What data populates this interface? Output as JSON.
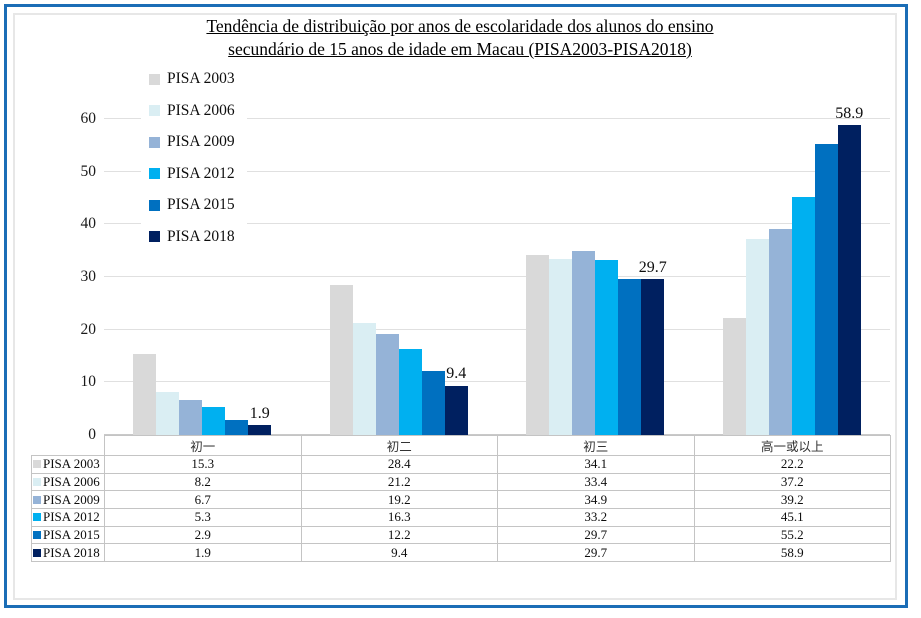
{
  "title": {
    "line1": "Tendência de distribuição por anos de escolaridade dos alunos do ensino",
    "line2": "secundário de 15 anos de idade em Macau (PISA2003-PISA2018)"
  },
  "colors": {
    "outer_frame": "#1b6db6",
    "chart_border": "#e7e7e7",
    "gridline": "#e0e0e0",
    "axis_line": "#c9c9c9",
    "table_border": "#c4c4c4"
  },
  "chart_data": {
    "type": "bar",
    "title": "Tendência de distribuição por anos de escolaridade dos alunos do ensino secundário de 15 anos de idade em Macau (PISA2003-PISA2018)",
    "categories": [
      "初一",
      "初二",
      "初三",
      "高一或以上"
    ],
    "series": [
      {
        "name": "PISA 2003",
        "color": "#d9d9d9",
        "values": [
          15.3,
          28.4,
          34.1,
          22.2
        ]
      },
      {
        "name": "PISA 2006",
        "color": "#daeef3",
        "values": [
          8.2,
          21.2,
          33.4,
          37.2
        ]
      },
      {
        "name": "PISA 2009",
        "color": "#95b3d7",
        "values": [
          6.7,
          19.2,
          34.9,
          39.2
        ]
      },
      {
        "name": "PISA 2012",
        "color": "#00b0f0",
        "values": [
          5.3,
          16.3,
          33.2,
          45.1
        ]
      },
      {
        "name": "PISA 2015",
        "color": "#0070c0",
        "values": [
          2.9,
          12.2,
          29.7,
          55.2
        ]
      },
      {
        "name": "PISA 2018",
        "color": "#002060",
        "values": [
          1.9,
          9.4,
          29.7,
          58.9
        ]
      }
    ],
    "data_labels": {
      "series": "PISA 2018",
      "values": [
        "1.9",
        "9.4",
        "29.7",
        "58.9"
      ]
    },
    "yticks": [
      0,
      10,
      20,
      30,
      40,
      50,
      60
    ],
    "ylim": [
      0,
      63
    ],
    "grid": true,
    "legend_position": "inside-top-left",
    "data_table_shown": true,
    "xlabel": "",
    "ylabel": ""
  }
}
